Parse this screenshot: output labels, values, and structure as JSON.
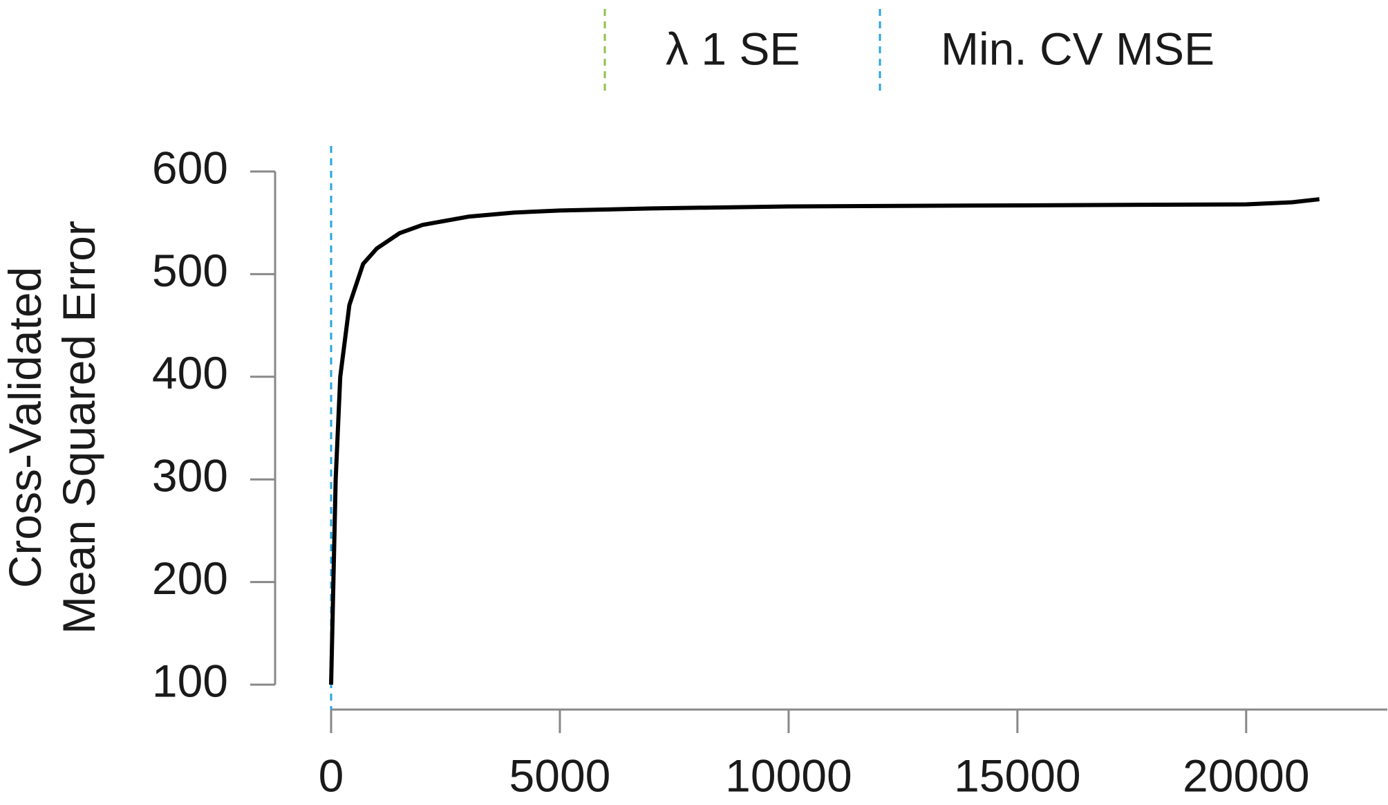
{
  "chart_data": {
    "type": "line",
    "y_label": [
      "Cross-Validated",
      "Mean Squared Error"
    ],
    "x": [
      0,
      50,
      100,
      200,
      400,
      700,
      1000,
      1500,
      2000,
      3000,
      4000,
      5000,
      7000,
      10000,
      15000,
      20000,
      21000,
      21600
    ],
    "series": [
      {
        "name": "CV MSE",
        "color": "#000000",
        "values": [
          100,
          200,
          300,
          400,
          470,
          510,
          525,
          540,
          548,
          556,
          560,
          562,
          564,
          566,
          567,
          568,
          570,
          573
        ]
      }
    ],
    "vlines": [
      {
        "name": "λ 1 SE",
        "color": "#8bc34a",
        "x": 0
      },
      {
        "name": "Min. CV MSE",
        "color": "#29a3e0",
        "x": 0
      }
    ],
    "xlim": [
      0,
      23100
    ],
    "xticks": [
      0,
      5000,
      10000,
      15000,
      20000
    ],
    "ylim": [
      100,
      600
    ],
    "yticks": [
      100,
      200,
      300,
      400,
      500,
      600
    ]
  }
}
